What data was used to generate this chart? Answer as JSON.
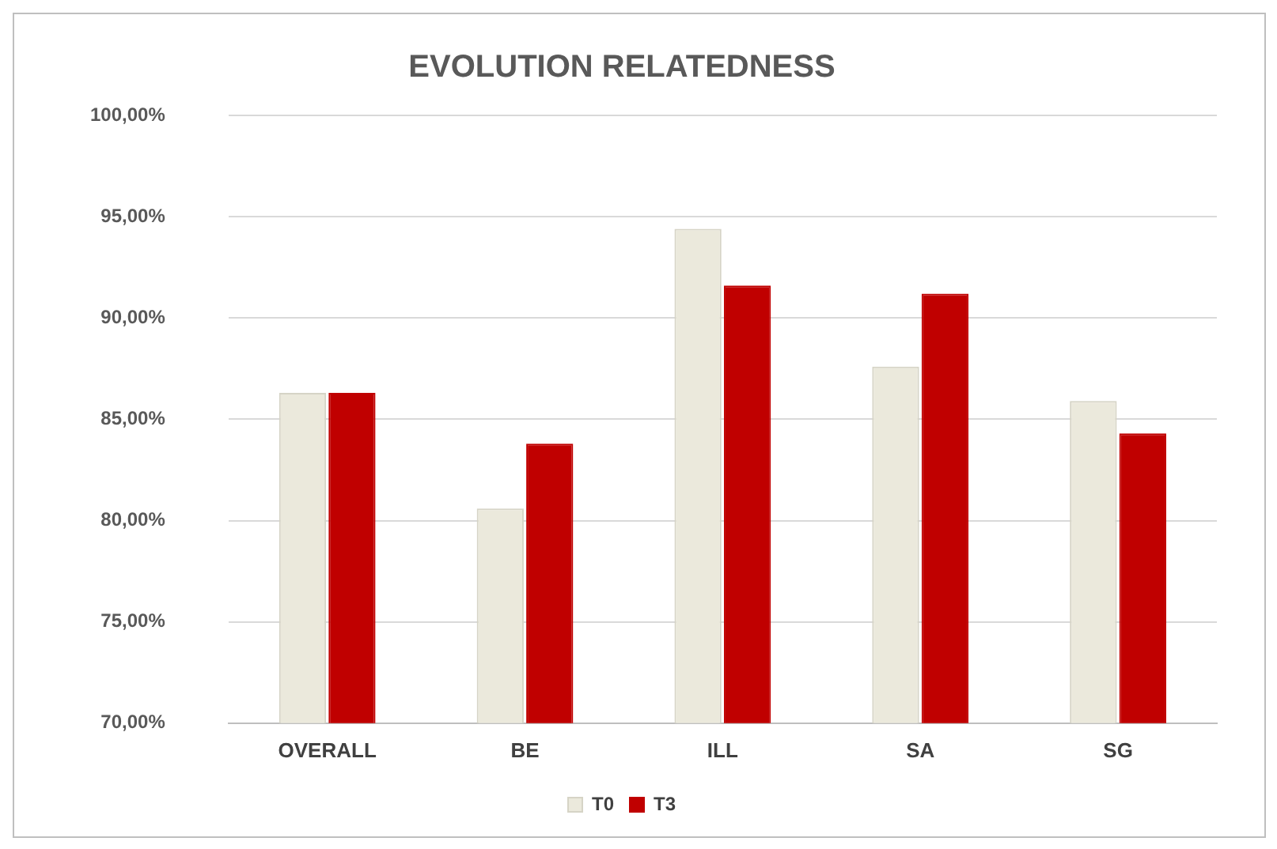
{
  "chart_data": {
    "type": "bar",
    "title": "EVOLUTION RELATEDNESS",
    "categories": [
      "OVERALL",
      "BE",
      "ILL",
      "SA",
      "SG"
    ],
    "series": [
      {
        "name": "T0",
        "color": "#ebe9dc",
        "values": [
          86.3,
          80.6,
          94.4,
          87.6,
          85.9
        ]
      },
      {
        "name": "T3",
        "color": "#c00000",
        "values": [
          86.3,
          83.8,
          91.6,
          91.2,
          84.3
        ]
      }
    ],
    "ylim": [
      70,
      100
    ],
    "yticks": [
      {
        "value": 70,
        "label": "70,00%"
      },
      {
        "value": 75,
        "label": "75,00%"
      },
      {
        "value": 80,
        "label": "80,00%"
      },
      {
        "value": 85,
        "label": "85,00%"
      },
      {
        "value": 90,
        "label": "90,00%"
      },
      {
        "value": 95,
        "label": "95,00%"
      },
      {
        "value": 100,
        "label": "100,00%"
      }
    ],
    "grid": "y",
    "legend": "bottom"
  }
}
